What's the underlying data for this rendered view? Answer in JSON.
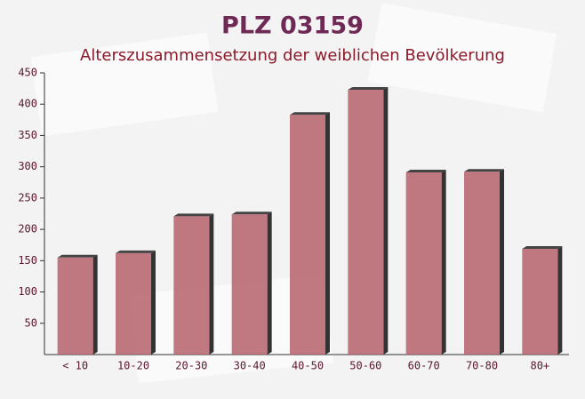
{
  "chart_data": {
    "type": "bar",
    "title": "PLZ 03159",
    "subtitle": "Alterszusammensetzung der weiblichen Bevölkerung",
    "categories": [
      "< 10",
      "10-20",
      "20-30",
      "30-40",
      "40-50",
      "50-60",
      "60-70",
      "70-80",
      "80+"
    ],
    "values": [
      155,
      162,
      221,
      224,
      383,
      423,
      291,
      292,
      169
    ],
    "color": "#b5606b",
    "ylim": [
      0,
      450
    ],
    "yticks": [
      50,
      100,
      150,
      200,
      250,
      300,
      350,
      400,
      450
    ],
    "grid": false
  }
}
